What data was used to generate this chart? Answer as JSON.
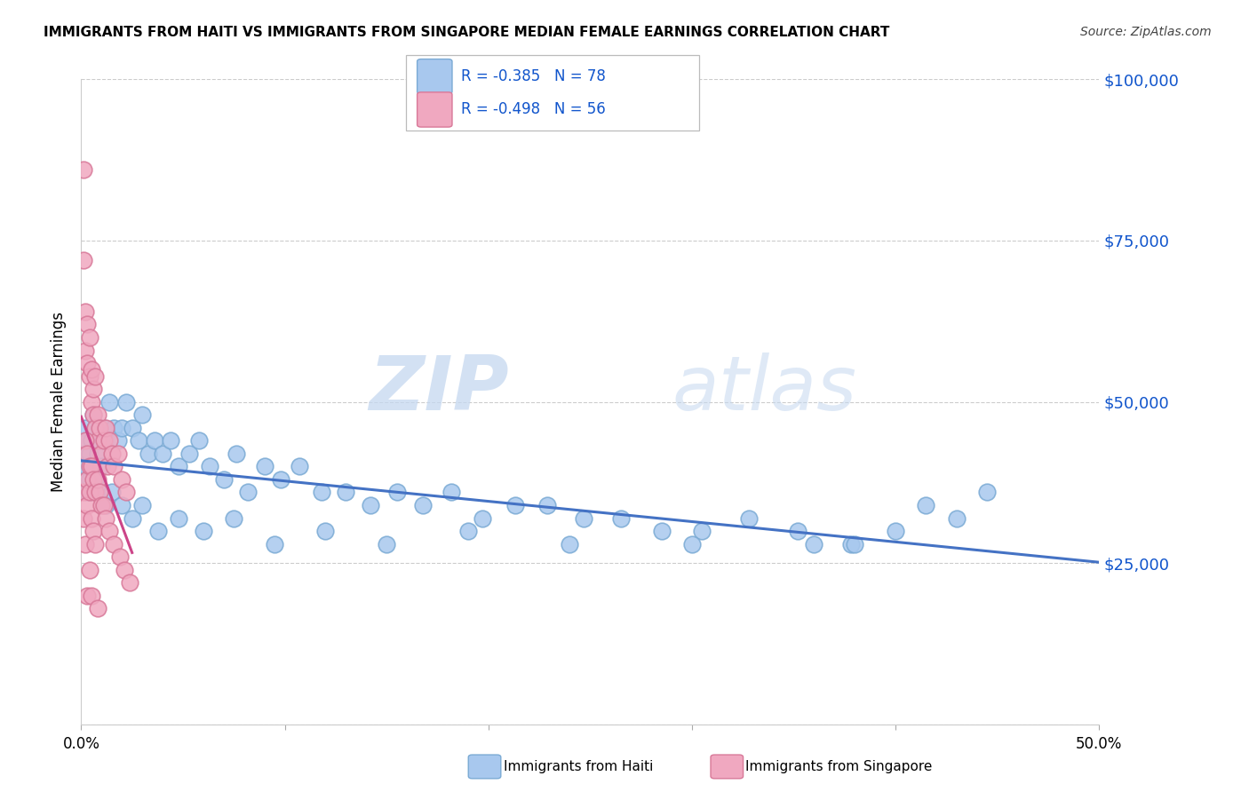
{
  "title": "IMMIGRANTS FROM HAITI VS IMMIGRANTS FROM SINGAPORE MEDIAN FEMALE EARNINGS CORRELATION CHART",
  "source": "Source: ZipAtlas.com",
  "ylabel": "Median Female Earnings",
  "x_min": 0.0,
  "x_max": 0.5,
  "y_min": 0,
  "y_max": 100000,
  "y_ticks": [
    0,
    25000,
    50000,
    75000,
    100000
  ],
  "y_tick_labels": [
    "",
    "$25,000",
    "$50,000",
    "$75,000",
    "$100,000"
  ],
  "x_ticks": [
    0.0,
    0.1,
    0.2,
    0.3,
    0.4,
    0.5
  ],
  "haiti_color": "#a8c8ee",
  "singapore_color": "#f0a8c0",
  "haiti_edge_color": "#7aaad4",
  "singapore_edge_color": "#d87898",
  "haiti_line_color": "#4472c4",
  "singapore_line_color": "#cc4488",
  "legend_color": "#1155cc",
  "haiti_R": -0.385,
  "haiti_N": 78,
  "singapore_R": -0.498,
  "singapore_N": 56,
  "watermark_zip": "ZIP",
  "watermark_atlas": "atlas",
  "legend_label_haiti": "Immigrants from Haiti",
  "legend_label_singapore": "Immigrants from Singapore",
  "haiti_x": [
    0.001,
    0.001,
    0.002,
    0.002,
    0.003,
    0.003,
    0.004,
    0.004,
    0.005,
    0.006,
    0.007,
    0.008,
    0.009,
    0.01,
    0.011,
    0.012,
    0.014,
    0.016,
    0.018,
    0.02,
    0.022,
    0.025,
    0.028,
    0.03,
    0.033,
    0.036,
    0.04,
    0.044,
    0.048,
    0.053,
    0.058,
    0.063,
    0.07,
    0.076,
    0.082,
    0.09,
    0.098,
    0.107,
    0.118,
    0.13,
    0.142,
    0.155,
    0.168,
    0.182,
    0.197,
    0.213,
    0.229,
    0.247,
    0.265,
    0.285,
    0.305,
    0.328,
    0.352,
    0.378,
    0.38,
    0.4,
    0.415,
    0.43,
    0.445,
    0.005,
    0.007,
    0.009,
    0.012,
    0.015,
    0.02,
    0.025,
    0.03,
    0.038,
    0.048,
    0.06,
    0.075,
    0.095,
    0.12,
    0.15,
    0.19,
    0.24,
    0.3,
    0.36
  ],
  "haiti_y": [
    42000,
    38000,
    46000,
    40000,
    44000,
    36000,
    42000,
    38000,
    44000,
    48000,
    46000,
    42000,
    44000,
    40000,
    46000,
    44000,
    50000,
    46000,
    44000,
    46000,
    50000,
    46000,
    44000,
    48000,
    42000,
    44000,
    42000,
    44000,
    40000,
    42000,
    44000,
    40000,
    38000,
    42000,
    36000,
    40000,
    38000,
    40000,
    36000,
    36000,
    34000,
    36000,
    34000,
    36000,
    32000,
    34000,
    34000,
    32000,
    32000,
    30000,
    30000,
    32000,
    30000,
    28000,
    28000,
    30000,
    34000,
    32000,
    36000,
    36000,
    38000,
    36000,
    34000,
    36000,
    34000,
    32000,
    34000,
    30000,
    32000,
    30000,
    32000,
    28000,
    30000,
    28000,
    30000,
    28000,
    28000,
    28000
  ],
  "singapore_x": [
    0.001,
    0.001,
    0.002,
    0.002,
    0.003,
    0.003,
    0.004,
    0.004,
    0.005,
    0.005,
    0.006,
    0.006,
    0.007,
    0.007,
    0.008,
    0.008,
    0.009,
    0.01,
    0.011,
    0.012,
    0.013,
    0.014,
    0.015,
    0.016,
    0.018,
    0.02,
    0.022,
    0.001,
    0.001,
    0.002,
    0.003,
    0.003,
    0.004,
    0.005,
    0.006,
    0.007,
    0.002,
    0.003,
    0.004,
    0.005,
    0.006,
    0.007,
    0.008,
    0.009,
    0.01,
    0.011,
    0.012,
    0.014,
    0.016,
    0.019,
    0.021,
    0.024,
    0.003,
    0.004,
    0.005,
    0.008
  ],
  "singapore_y": [
    86000,
    72000,
    64000,
    58000,
    62000,
    56000,
    60000,
    54000,
    55000,
    50000,
    52000,
    48000,
    54000,
    46000,
    44000,
    48000,
    46000,
    42000,
    44000,
    46000,
    40000,
    44000,
    42000,
    40000,
    42000,
    38000,
    36000,
    32000,
    36000,
    28000,
    38000,
    34000,
    36000,
    32000,
    30000,
    28000,
    44000,
    42000,
    40000,
    40000,
    38000,
    36000,
    38000,
    36000,
    34000,
    34000,
    32000,
    30000,
    28000,
    26000,
    24000,
    22000,
    20000,
    24000,
    20000,
    18000
  ]
}
